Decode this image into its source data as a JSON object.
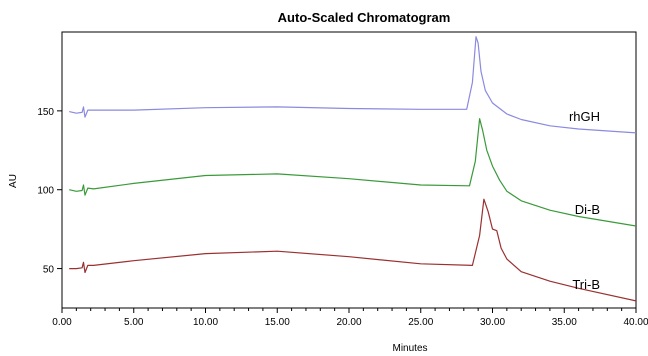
{
  "chart_data": {
    "type": "line",
    "title": "Auto-Scaled Chromatogram",
    "xlabel": "Minutes",
    "ylabel": "AU",
    "xlim": [
      0,
      40
    ],
    "ylim": [
      25,
      200
    ],
    "x_ticks": [
      0,
      5,
      10,
      15,
      20,
      25,
      30,
      35,
      40
    ],
    "x_tick_labels": [
      "0.00",
      "5.00",
      "10.00",
      "15.00",
      "20.00",
      "25.00",
      "30.00",
      "35.00",
      "40.00"
    ],
    "y_ticks": [
      50,
      100,
      150
    ],
    "y_tick_labels": [
      "50",
      "100",
      "150"
    ],
    "grid": false,
    "legend": "inline-right",
    "series": [
      {
        "name": "rhGH",
        "color": "#8a8ae0",
        "x": [
          0.5,
          1.0,
          1.4,
          1.5,
          1.6,
          1.8,
          2.2,
          5,
          10,
          15,
          20,
          25,
          28.2,
          28.6,
          28.85,
          29.0,
          29.2,
          29.5,
          30.0,
          31.0,
          32.0,
          34.0,
          36.0,
          40.0
        ],
        "y": [
          149.5,
          148.5,
          149,
          152.5,
          146,
          150.5,
          150.5,
          150.5,
          152,
          152.5,
          151.5,
          151,
          151,
          168,
          197,
          193,
          175,
          163,
          155,
          148,
          144.5,
          140.5,
          138.5,
          136
        ]
      },
      {
        "name": "Di-B",
        "color": "#3a9a3a",
        "x": [
          0.5,
          1.0,
          1.4,
          1.5,
          1.6,
          1.8,
          2.2,
          5,
          10,
          15,
          20,
          25,
          28.4,
          28.8,
          29.1,
          29.3,
          29.6,
          30.0,
          30.5,
          31.0,
          32.0,
          34.0,
          36.0,
          40.0
        ],
        "y": [
          100,
          99,
          99.5,
          103,
          96.5,
          101,
          100.5,
          104,
          109,
          110,
          107,
          103,
          102.5,
          118,
          145,
          138,
          125,
          115,
          106,
          99,
          93,
          87,
          83,
          77
        ]
      },
      {
        "name": "Tri-B",
        "color": "#9a3030",
        "x": [
          0.5,
          1.0,
          1.4,
          1.5,
          1.6,
          1.8,
          2.2,
          5,
          10,
          15,
          20,
          25,
          28.6,
          29.1,
          29.4,
          29.7,
          30.0,
          30.3,
          30.6,
          31.0,
          32.0,
          34.0,
          36.0,
          40.0
        ],
        "y": [
          50,
          50,
          50.5,
          54,
          47.5,
          52,
          52,
          55,
          59.5,
          61,
          57.5,
          53,
          52,
          71,
          94,
          86,
          75,
          74,
          63,
          56,
          48,
          42,
          37.5,
          29.5
        ]
      }
    ]
  }
}
